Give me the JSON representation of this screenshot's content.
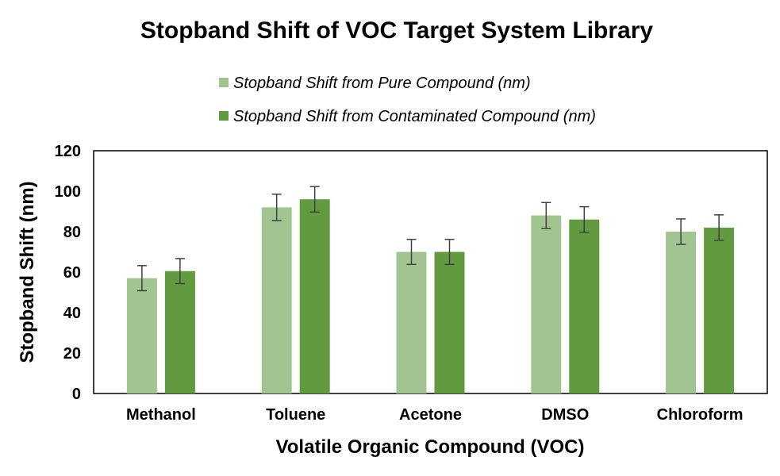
{
  "chart_data": {
    "type": "bar",
    "title": "Stopband Shift of VOC Target System Library",
    "xlabel": "Volatile Organic Compound (VOC)",
    "ylabel": "Stopband Shift (nm)",
    "ylim": [
      0,
      120
    ],
    "yticks": [
      "0",
      "20",
      "40",
      "60",
      "80",
      "100",
      "120"
    ],
    "grid": false,
    "legend_position": "top",
    "categories": [
      "Methanol",
      "Toluene",
      "Acetone",
      "DMSO",
      "Chloroform"
    ],
    "series": [
      {
        "name": "Stopband Shift from Pure Compound (nm)",
        "color": "#a1c490",
        "values": [
          57,
          92,
          70,
          88,
          80
        ],
        "errors": [
          6.2,
          6.5,
          6.2,
          6.4,
          6.3
        ]
      },
      {
        "name": "Stopband Shift from Contaminated Compound (nm)",
        "color": "#619a3f",
        "values": [
          60.5,
          96,
          70,
          86,
          82
        ],
        "errors": [
          6.2,
          6.3,
          6.2,
          6.3,
          6.3
        ]
      }
    ]
  }
}
